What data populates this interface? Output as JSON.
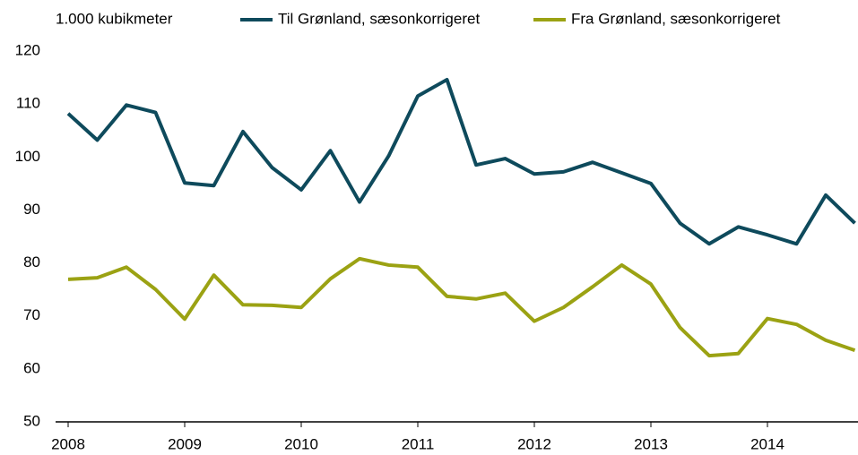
{
  "chart_data": {
    "type": "line",
    "y_label": "1.000 kubikmeter",
    "categories": [
      "2008",
      null,
      null,
      null,
      "2009",
      null,
      null,
      null,
      "2010",
      null,
      null,
      null,
      "2011",
      null,
      null,
      null,
      "2012",
      null,
      null,
      null,
      "2013",
      null,
      null,
      null,
      "2014",
      null,
      null,
      null
    ],
    "series": [
      {
        "name": "Til Grønland, sæsonkorrigeret",
        "color": "#0e4a5c",
        "values": [
          108.2,
          103.2,
          109.8,
          108.4,
          95.1,
          94.6,
          104.8,
          98,
          93.8,
          101.2,
          91.5,
          100.2,
          111.5,
          114.6,
          98.5,
          99.7,
          96.8,
          97.2,
          99,
          97,
          95,
          87.5,
          83.6,
          86.8,
          85.3,
          83.6,
          92.8,
          87.5
        ]
      },
      {
        "name": "Fra Grønland, sæsonkorrigeret",
        "color": "#9ba213",
        "values": [
          76.9,
          77.2,
          79.2,
          75,
          69.4,
          77.7,
          72.1,
          72,
          71.6,
          77,
          80.8,
          79.6,
          79.2,
          73.7,
          73.2,
          74.3,
          69,
          71.6,
          75.5,
          79.6,
          76,
          67.8,
          62.5,
          62.9,
          69.5,
          68.4,
          65.4,
          63.5
        ]
      }
    ],
    "ylim": [
      50,
      120
    ],
    "yticks": [
      50,
      60,
      70,
      80,
      90,
      100,
      110,
      120
    ],
    "grid": false
  }
}
